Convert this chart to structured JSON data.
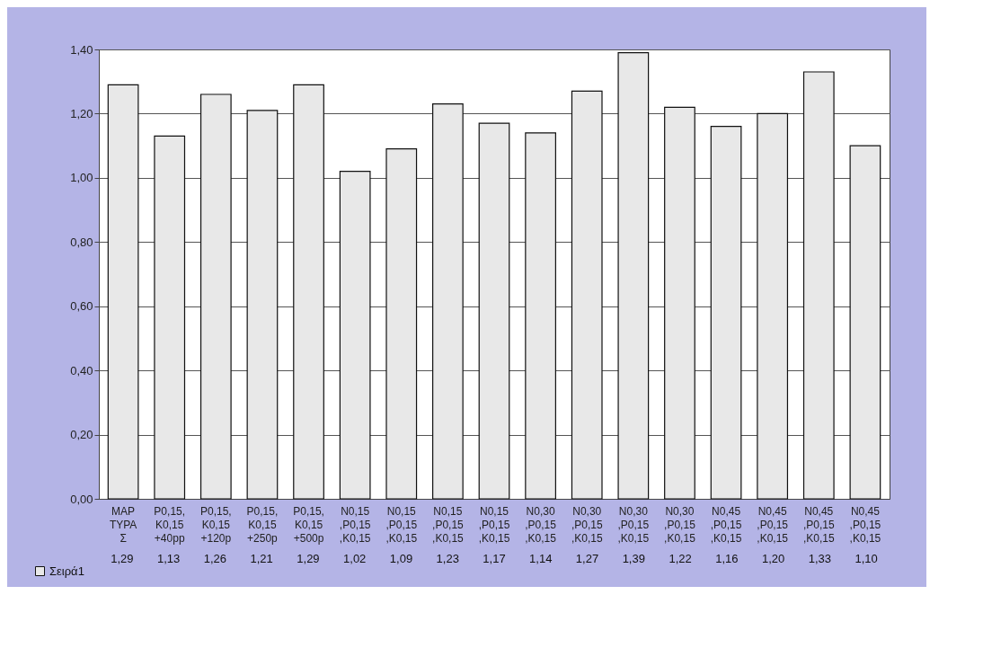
{
  "chart_data": {
    "type": "bar",
    "categories": [
      "MAP\nTYPA\nΣ",
      "P0,15,\nK0,15\n+40pp",
      "P0,15,\nK0,15\n+120p",
      "P0,15,\nK0,15\n+250p",
      "P0,15,\nK0,15\n+500p",
      "N0,15\n,P0,15\n,K0,15",
      "N0,15\n,P0,15\n,K0,15",
      "N0,15\n,P0,15\n,K0,15",
      "N0,15\n,P0,15\n,K0,15",
      "N0,30\n,P0,15\n,K0,15",
      "N0,30\n,P0,15\n,K0,15",
      "N0,30\n,P0,15\n,K0,15",
      "N0,30\n,P0,15\n,K0,15",
      "N0,45\n,P0,15\n,K0,15",
      "N0,45\n,P0,15\n,K0,15",
      "N0,45\n,P0,15\n,K0,15",
      "N0,45\n,P0,15\n,K0,15"
    ],
    "series": [
      {
        "name": "Σειρά1",
        "color": "#e8e8e8",
        "values": [
          1.29,
          1.13,
          1.26,
          1.21,
          1.29,
          1.02,
          1.09,
          1.23,
          1.17,
          1.14,
          1.27,
          1.39,
          1.22,
          1.16,
          1.2,
          1.33,
          1.1
        ],
        "value_labels": [
          "1,29",
          "1,13",
          "1,26",
          "1,21",
          "1,29",
          "1,02",
          "1,09",
          "1,23",
          "1,17",
          "1,14",
          "1,27",
          "1,39",
          "1,22",
          "1,16",
          "1,20",
          "1,33",
          "1,10"
        ]
      }
    ],
    "ylim": [
      0,
      1.4
    ],
    "yticks": [
      {
        "value": 0,
        "label": "0,00"
      },
      {
        "value": 0.2,
        "label": "0,20"
      },
      {
        "value": 0.4,
        "label": "0,40"
      },
      {
        "value": 0.6,
        "label": "0,60"
      },
      {
        "value": 0.8,
        "label": "0,80"
      },
      {
        "value": 1.0,
        "label": "1,00"
      },
      {
        "value": 1.2,
        "label": "1,20"
      },
      {
        "value": 1.4,
        "label": "1,40"
      }
    ],
    "grid": true,
    "legend": "bottom left"
  }
}
